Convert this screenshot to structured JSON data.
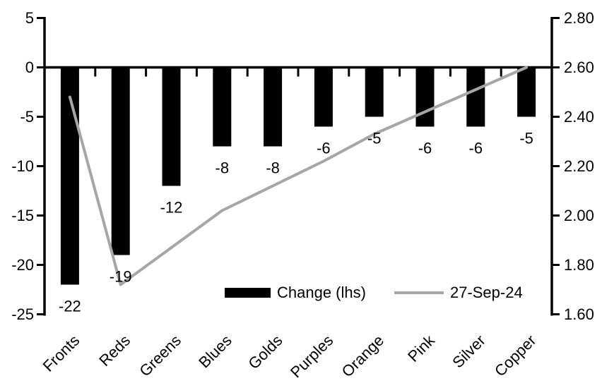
{
  "chart_data": {
    "type": "combo-bar-line-dual-axis",
    "title": "",
    "categories": [
      "Fronts",
      "Reds",
      "Greens",
      "Blues",
      "Golds",
      "Purples",
      "Orange",
      "Pink",
      "Silver",
      "Copper"
    ],
    "series": [
      {
        "name": "Change (lhs)",
        "type": "bar",
        "axis": "left",
        "color": "#000000",
        "values": [
          -22,
          -19,
          -12,
          -8,
          -8,
          -6,
          -5,
          -6,
          -6,
          -5
        ],
        "data_labels": [
          "-22",
          "-19",
          "-12",
          "-8",
          "-8",
          "-6",
          "-5",
          "-6",
          "-6",
          "-5"
        ]
      },
      {
        "name": "27-Sep-24",
        "type": "line",
        "axis": "right",
        "color": "#a6a6a6",
        "values": [
          2.48,
          1.72,
          1.87,
          2.02,
          2.12,
          2.22,
          2.33,
          2.42,
          2.51,
          2.6
        ]
      }
    ],
    "left_axis": {
      "tick_labels": [
        "5",
        "0",
        "-5",
        "-10",
        "-15",
        "-20",
        "-25"
      ],
      "max": 5,
      "min": -25
    },
    "right_axis": {
      "tick_labels": [
        "2.80",
        "2.60",
        "2.40",
        "2.20",
        "2.00",
        "1.80",
        "1.60"
      ],
      "max": 2.8,
      "min": 1.6
    },
    "legend_position": "bottom-inside-right",
    "grid": false,
    "axis_color": "#000000"
  }
}
